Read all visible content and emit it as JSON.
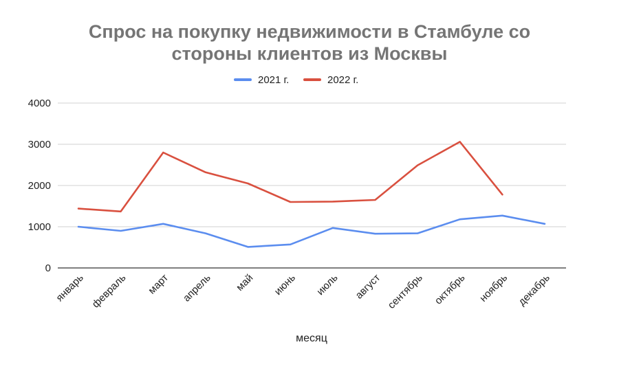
{
  "chart_data": {
    "type": "line",
    "title_lines": [
      "Спрос на покупку недвижимости в Стамбуле со",
      "стороны клиентов из Москвы"
    ],
    "xlabel": "месяц",
    "ylabel": "",
    "categories": [
      "январь",
      "февраль",
      "март",
      "апрель",
      "май",
      "июнь",
      "июль",
      "август",
      "сентябрь",
      "октябрь",
      "ноябрь",
      "декабрь"
    ],
    "ylim": [
      0,
      4000
    ],
    "yticks": [
      0,
      1000,
      2000,
      3000,
      4000
    ],
    "yticks_labels": [
      "0",
      "1000",
      "2000",
      "3000",
      "4000"
    ],
    "grid": true,
    "legend_position": "top-center",
    "series": [
      {
        "name": "2021 г.",
        "color": "#5b8def",
        "values": [
          1000,
          900,
          1070,
          840,
          510,
          570,
          970,
          830,
          840,
          1180,
          1270,
          1070
        ]
      },
      {
        "name": "2022 г.",
        "color": "#d9503f",
        "values": [
          1440,
          1370,
          2800,
          2320,
          2050,
          1600,
          1610,
          1650,
          2490,
          3060,
          1780,
          null
        ]
      }
    ]
  }
}
